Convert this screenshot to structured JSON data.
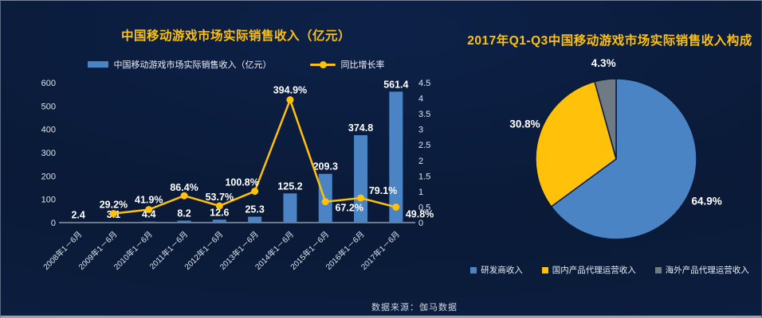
{
  "slide": {
    "source_note": "数据来源：伽马数据"
  },
  "theme": {
    "background": "#0a1a37",
    "title_color": "#ffc10a",
    "text_color": "#ffffff",
    "axis_text_color": "#dde4ee",
    "bar_color": "#4a84c4",
    "line_color": "#ffc10a"
  },
  "chart_data": [
    {
      "type": "bar",
      "title": "中国移动游戏市场实际销售收入（亿元）",
      "categories": [
        "2008年1－6月",
        "2009年1－6月",
        "2010年1－6月",
        "2011年1－6月",
        "2012年1－6月",
        "2013年1－6月",
        "2014年1－6月",
        "2015年1－6月",
        "2016年1－6月",
        "2017年1－6月"
      ],
      "series": [
        {
          "name": "中国移动游戏市场实际销售收入（亿元）",
          "type": "bar",
          "axis": "left",
          "color": "#4a84c4",
          "values": [
            2.4,
            3.1,
            4.4,
            8.2,
            12.6,
            25.3,
            125.2,
            209.3,
            374.8,
            561.4
          ]
        },
        {
          "name": "同比增长率",
          "type": "line",
          "axis": "right",
          "color": "#ffc10a",
          "values_percent": [
            null,
            29.2,
            41.9,
            86.4,
            53.7,
            100.8,
            394.9,
            67.2,
            79.1,
            49.8
          ]
        }
      ],
      "axes": {
        "left": {
          "range": [
            0,
            600
          ],
          "ticks": [
            0,
            100,
            200,
            300,
            400,
            500,
            600
          ]
        },
        "right": {
          "range": [
            0,
            4.5
          ],
          "ticks": [
            0,
            0.5,
            1,
            1.5,
            2,
            2.5,
            3,
            3.5,
            4,
            4.5
          ]
        }
      },
      "grid": false,
      "legend_position": "top"
    },
    {
      "type": "pie",
      "title": "2017年Q1-Q3中国移动游戏市场实际销售收入构成",
      "labels": [
        "研发商收入",
        "国内产品代理运营收入",
        "海外产品代理运营收入"
      ],
      "values": [
        64.9,
        30.8,
        4.3
      ],
      "value_labels": [
        "64.9%",
        "30.8%",
        "4.3%"
      ],
      "colors": [
        "#4a84c4",
        "#ffc10a",
        "#6f7a85"
      ],
      "start_angle": "top",
      "direction": "clockwise",
      "legend_position": "bottom"
    }
  ]
}
